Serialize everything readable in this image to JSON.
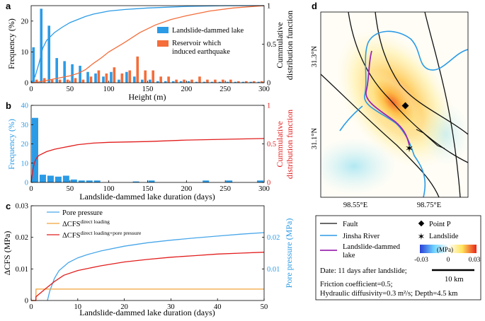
{
  "colors": {
    "blue": "#2b9be6",
    "orange": "#f46d3a",
    "red": "#e21d1d",
    "lightblue": "#47a6ea",
    "gold": "#f2a33a",
    "purple": "#9b27b0"
  },
  "panel_a": {
    "label": "a",
    "ylabel": "Frequency (%)",
    "xlabel": "Height (m)",
    "y2label": [
      "Cummulative",
      "distribution function"
    ],
    "legend": [
      "Landslide-dammed lake",
      "Reservoir which",
      "induced earthquake"
    ]
  },
  "panel_b": {
    "label": "b",
    "ylabel": "Frequency (%)",
    "xlabel": "Landslide-dammed lake duration (days)",
    "y2label": [
      "Cummulative",
      "distribution function"
    ]
  },
  "panel_c": {
    "label": "c",
    "ylabel": "ΔCFS (MPa)",
    "xlabel": "Landslide-dammed lake duration (days)",
    "y2label": "Pore pressure (MPa)",
    "legend": {
      "pore": "Pore pressure",
      "delta": "ΔCFS",
      "direct_sup": "direct loading",
      "combined_sup": "direct loading+pore pressure"
    }
  },
  "panel_d": {
    "label": "d",
    "lat_labels": [
      "31.3°N",
      "31.1°N"
    ],
    "lon_labels": [
      "98.55°E",
      "98.75°E"
    ],
    "legend": {
      "fault": "Fault",
      "river": "Jinsha River",
      "lake": "Landslide-dammed",
      "lake2": "lake",
      "point": "Point P",
      "landslide": "Landslide",
      "cbar_unit": "(MPa)",
      "cbar_ticks": [
        "-0.03",
        "0",
        "0.03"
      ],
      "date": "Date: 11 days after landslide;",
      "scale": "10 km",
      "friction": "Friction coefficient=0.5;",
      "hydraulic": "Hydraulic diffusivity=0.3 m²/s; Depth=4.5 km"
    }
  },
  "chart_data": [
    {
      "type": "bar",
      "id": "a",
      "title": "",
      "xlabel": "Height (m)",
      "ylabel": "Frequency (%)",
      "y2label": "Cummulative distribution function",
      "xlim": [
        0,
        300
      ],
      "ylim": [
        0,
        25
      ],
      "y2lim": [
        0,
        1
      ],
      "xticks": [
        0,
        50,
        100,
        150,
        200,
        250,
        300
      ],
      "yticks": [
        0,
        10,
        20
      ],
      "y2ticks": [
        0,
        0.5,
        1
      ],
      "series": [
        {
          "name": "Landslide-dammed lake",
          "kind": "bar",
          "x": [
            5,
            15,
            25,
            35,
            45,
            55,
            65,
            75,
            85,
            95,
            105,
            115,
            125,
            135,
            145,
            155,
            165,
            175,
            185,
            195,
            205,
            215,
            225,
            235,
            245,
            255,
            265,
            275,
            285,
            295
          ],
          "values": [
            11.5,
            24,
            18.5,
            8,
            7,
            6,
            5.5,
            3.5,
            3,
            2,
            3.5,
            1,
            3.5,
            2,
            1,
            1,
            0.5,
            0.5,
            0.5,
            0.5,
            0.5,
            0.3,
            0.3,
            0.3,
            0.3,
            0.3,
            0.3,
            0.3,
            0.3,
            0.3
          ]
        },
        {
          "name": "Reservoir which induced earthquake",
          "kind": "bar",
          "x": [
            5,
            15,
            25,
            35,
            45,
            55,
            65,
            75,
            85,
            95,
            105,
            115,
            125,
            135,
            145,
            155,
            165,
            175,
            185,
            195,
            205,
            215,
            225,
            235,
            245,
            255,
            265,
            275,
            285,
            295
          ],
          "values": [
            1,
            1.5,
            1,
            1,
            1,
            1.5,
            1,
            2,
            4,
            3,
            5,
            3,
            4,
            8.5,
            4,
            4,
            2,
            2,
            1,
            1,
            1,
            2,
            1,
            1,
            1,
            1,
            0.5,
            0.5,
            0.5,
            0.5
          ]
        },
        {
          "name": "Landslide-dammed lake CDF",
          "kind": "line",
          "axis": "y2",
          "x": [
            0,
            5,
            10,
            15,
            20,
            30,
            40,
            50,
            60,
            70,
            80,
            100,
            120,
            150,
            200,
            250,
            300
          ],
          "values": [
            0,
            0.08,
            0.25,
            0.45,
            0.55,
            0.65,
            0.72,
            0.78,
            0.82,
            0.86,
            0.89,
            0.93,
            0.95,
            0.97,
            0.99,
            1,
            1
          ]
        },
        {
          "name": "Reservoir CDF",
          "kind": "line",
          "axis": "y2",
          "x": [
            0,
            10,
            20,
            30,
            40,
            50,
            60,
            70,
            80,
            90,
            100,
            120,
            140,
            160,
            180,
            200,
            230,
            260,
            300
          ],
          "values": [
            0,
            0.01,
            0.03,
            0.05,
            0.07,
            0.09,
            0.12,
            0.17,
            0.25,
            0.32,
            0.4,
            0.52,
            0.65,
            0.75,
            0.82,
            0.87,
            0.93,
            0.97,
            1
          ]
        }
      ]
    },
    {
      "type": "bar",
      "id": "b",
      "title": "",
      "xlabel": "Landslide-dammed lake duration (days)",
      "ylabel": "Frequency (%)",
      "y2label": "Cummulative distribution function",
      "xlim": [
        0,
        300
      ],
      "ylim": [
        0,
        40
      ],
      "y2lim": [
        0,
        1
      ],
      "xticks": [
        0,
        50,
        100,
        150,
        200,
        250,
        300
      ],
      "yticks": [
        0,
        10,
        20,
        30,
        40
      ],
      "y2ticks": [
        0,
        0.5,
        1
      ],
      "series": [
        {
          "name": "Frequency",
          "kind": "bar",
          "x": [
            5,
            15,
            25,
            35,
            45,
            55,
            65,
            75,
            85,
            95,
            105,
            115,
            125,
            135,
            145,
            155,
            165,
            175,
            185,
            195,
            205,
            215,
            225,
            235,
            245,
            255,
            265,
            275,
            285,
            295
          ],
          "values": [
            33.5,
            4,
            3.5,
            3,
            3.5,
            1.5,
            1,
            1,
            1,
            0,
            0,
            0,
            0,
            0.5,
            0,
            1,
            0,
            0,
            0,
            0,
            0,
            0,
            1,
            0,
            0,
            1,
            0,
            0,
            0,
            1
          ]
        },
        {
          "name": "CDF",
          "kind": "line",
          "axis": "y2",
          "x": [
            0,
            2,
            4,
            6,
            8,
            10,
            20,
            30,
            40,
            50,
            60,
            70,
            80,
            100,
            150,
            200,
            250,
            300
          ],
          "values": [
            0,
            0.15,
            0.25,
            0.3,
            0.33,
            0.35,
            0.4,
            0.43,
            0.45,
            0.47,
            0.49,
            0.5,
            0.51,
            0.52,
            0.53,
            0.55,
            0.56,
            0.57
          ]
        }
      ]
    },
    {
      "type": "line",
      "id": "c",
      "title": "",
      "xlabel": "Landslide-dammed lake duration (days)",
      "ylabel": "ΔCFS (MPa)",
      "y2label": "Pore pressure (MPa)",
      "xlim": [
        0,
        50
      ],
      "ylim": [
        0,
        0.03
      ],
      "y2lim": [
        0,
        0.03
      ],
      "xticks": [
        0,
        10,
        20,
        30,
        40,
        50
      ],
      "yticks": [
        0,
        0.01,
        0.02,
        0.03
      ],
      "y2ticks": [
        0.01,
        0.02
      ],
      "series": [
        {
          "name": "Pore pressure",
          "axis": "y2",
          "x": [
            3.5,
            4,
            5,
            6,
            8,
            10,
            12,
            15,
            20,
            25,
            30,
            35,
            40,
            45,
            50
          ],
          "values": [
            0,
            0.003,
            0.007,
            0.0095,
            0.012,
            0.0135,
            0.0145,
            0.0157,
            0.0172,
            0.0183,
            0.0191,
            0.0198,
            0.0204,
            0.021,
            0.0215
          ]
        },
        {
          "name": "ΔCFS direct loading",
          "axis": "y",
          "x": [
            0,
            1,
            1.05,
            50
          ],
          "values": [
            0,
            0,
            0.0036,
            0.0036
          ]
        },
        {
          "name": "ΔCFS direct loading+pore pressure",
          "axis": "y",
          "x": [
            0,
            1,
            1.05,
            3,
            5,
            7,
            10,
            15,
            20,
            25,
            30,
            35,
            40,
            45,
            50
          ],
          "values": [
            0,
            0,
            0.0012,
            0.0036,
            0.006,
            0.008,
            0.0095,
            0.011,
            0.0122,
            0.013,
            0.0137,
            0.0142,
            0.0147,
            0.015,
            0.0153
          ]
        }
      ]
    }
  ]
}
